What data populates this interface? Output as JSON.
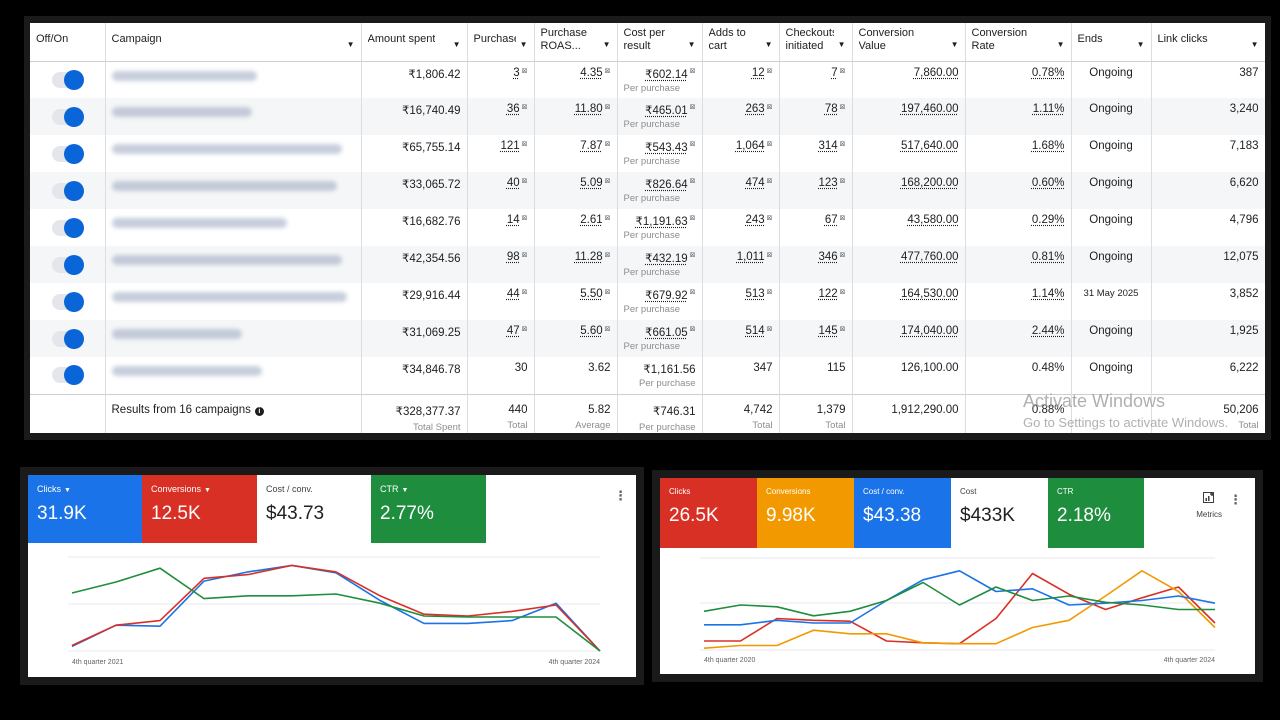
{
  "table": {
    "columns": [
      "Off/On",
      "Campaign",
      "Amount spent",
      "Purchases",
      "Purchase ROAS...",
      "Cost per result",
      "Adds to cart",
      "Checkouts initiated",
      "Conversion Value",
      "Conversion Rate",
      "Ends",
      "Link clicks"
    ],
    "rows": [
      {
        "amount": "₹1,806.42",
        "purchases": "3",
        "roas": "4.35",
        "cpr": "₹602.14",
        "cpr_sub": "Per purchase",
        "atc": "12",
        "checkout": "7",
        "value": "7,860.00",
        "rate": "0.78%",
        "ends": "Ongoing",
        "clicks": "387"
      },
      {
        "amount": "₹16,740.49",
        "purchases": "36",
        "roas": "11.80",
        "cpr": "₹465.01",
        "cpr_sub": "Per purchase",
        "atc": "263",
        "checkout": "78",
        "value": "197,460.00",
        "rate": "1.11%",
        "ends": "Ongoing",
        "clicks": "3,240"
      },
      {
        "amount": "₹65,755.14",
        "purchases": "121",
        "roas": "7.87",
        "cpr": "₹543.43",
        "cpr_sub": "Per purchase",
        "atc": "1,064",
        "checkout": "314",
        "value": "517,640.00",
        "rate": "1.68%",
        "ends": "Ongoing",
        "clicks": "7,183"
      },
      {
        "amount": "₹33,065.72",
        "purchases": "40",
        "roas": "5.09",
        "cpr": "₹826.64",
        "cpr_sub": "Per purchase",
        "atc": "474",
        "checkout": "123",
        "value": "168,200.00",
        "rate": "0.60%",
        "ends": "Ongoing",
        "clicks": "6,620"
      },
      {
        "amount": "₹16,682.76",
        "purchases": "14",
        "roas": "2.61",
        "cpr": "₹1,191.63",
        "cpr_sub": "Per purchase",
        "atc": "243",
        "checkout": "67",
        "value": "43,580.00",
        "rate": "0.29%",
        "ends": "Ongoing",
        "clicks": "4,796"
      },
      {
        "amount": "₹42,354.56",
        "purchases": "98",
        "roas": "11.28",
        "cpr": "₹432.19",
        "cpr_sub": "Per purchase",
        "atc": "1,011",
        "checkout": "346",
        "value": "477,760.00",
        "rate": "0.81%",
        "ends": "Ongoing",
        "clicks": "12,075"
      },
      {
        "amount": "₹29,916.44",
        "purchases": "44",
        "roas": "5.50",
        "cpr": "₹679.92",
        "cpr_sub": "Per purchase",
        "atc": "513",
        "checkout": "122",
        "value": "164,530.00",
        "rate": "1.14%",
        "ends": "31 May 2025",
        "clicks": "3,852"
      },
      {
        "amount": "₹31,069.25",
        "purchases": "47",
        "roas": "5.60",
        "cpr": "₹661.05",
        "cpr_sub": "Per purchase",
        "atc": "514",
        "checkout": "145",
        "value": "174,040.00",
        "rate": "2.44%",
        "ends": "Ongoing",
        "clicks": "1,925"
      },
      {
        "amount": "₹34,846.78",
        "purchases": "30",
        "roas": "3.62",
        "cpr": "₹1,161.56",
        "cpr_sub": "Per purchase",
        "atc": "347",
        "checkout": "115",
        "value": "126,100.00",
        "rate": "0.48%",
        "ends": "Ongoing",
        "clicks": "6,222"
      }
    ],
    "totals": {
      "label": "Results from 16 campaigns",
      "amount": "₹328,377.37",
      "amount_sub": "Total Spent",
      "purchases": "440",
      "purchases_sub": "Total",
      "roas": "5.82",
      "roas_sub": "Average",
      "cpr": "₹746.31",
      "cpr_sub": "Per purchase",
      "atc": "4,742",
      "atc_sub": "Total",
      "checkout": "1,379",
      "checkout_sub": "Total",
      "value": "1,912,290.00",
      "rate": "0.88%",
      "clicks": "50,206",
      "clicks_sub": "Total"
    }
  },
  "watermark": {
    "title": "Activate Windows",
    "subtitle": "Go to Settings to activate Windows."
  },
  "left_panel": {
    "tiles": [
      {
        "label": "Clicks",
        "value": "31.9K",
        "color": "#1a73e8"
      },
      {
        "label": "Conversions",
        "value": "12.5K",
        "color": "#d93025"
      },
      {
        "label": "Cost / conv.",
        "value": "$43.73",
        "color": "#ffffff"
      },
      {
        "label": "CTR",
        "value": "2.77%",
        "color": "#1e8e3e"
      }
    ],
    "x_start": "4th quarter 2021",
    "x_end": "4th quarter 2024"
  },
  "right_panel": {
    "tiles": [
      {
        "label": "Clicks",
        "value": "26.5K",
        "color": "#d93025"
      },
      {
        "label": "Conversions",
        "value": "9.98K",
        "color": "#f29900"
      },
      {
        "label": "Cost / conv.",
        "value": "$43.38",
        "color": "#1a73e8"
      },
      {
        "label": "Cost",
        "value": "$433K",
        "color": "#ffffff"
      },
      {
        "label": "CTR",
        "value": "2.18%",
        "color": "#1e8e3e"
      }
    ],
    "metrics_label": "Metrics",
    "x_start": "4th quarter 2020",
    "x_end": "4th quarter 2024"
  },
  "chart_data": [
    {
      "type": "line",
      "xlabel_ticks": [
        "4th quarter 2021",
        "4th quarter 2024"
      ],
      "ylim": [
        0,
        100
      ],
      "grid": true,
      "series": [
        {
          "name": "Clicks",
          "color": "#1a73e8",
          "values": [
            5,
            28,
            27,
            76,
            86,
            93,
            85,
            55,
            30,
            30,
            33,
            52,
            0
          ]
        },
        {
          "name": "Conversions",
          "color": "#d93025",
          "values": [
            6,
            28,
            33,
            79,
            83,
            93,
            86,
            60,
            40,
            38,
            43,
            50,
            0
          ]
        },
        {
          "name": "CTR",
          "color": "#1e8e3e",
          "values": [
            63,
            75,
            90,
            57,
            60,
            60,
            62,
            52,
            38,
            37,
            37,
            37,
            0
          ]
        }
      ]
    },
    {
      "type": "line",
      "xlabel_ticks": [
        "4th quarter 2020",
        "4th quarter 2024"
      ],
      "ylim": [
        0,
        100
      ],
      "grid": true,
      "series": [
        {
          "name": "Clicks",
          "color": "#d93025",
          "values": [
            10,
            10,
            35,
            33,
            32,
            10,
            8,
            7,
            35,
            85,
            62,
            45,
            58,
            70,
            30
          ]
        },
        {
          "name": "Conversions",
          "color": "#f29900",
          "values": [
            2,
            5,
            5,
            22,
            18,
            18,
            8,
            7,
            7,
            25,
            33,
            60,
            88,
            65,
            25
          ]
        },
        {
          "name": "Cost / conv.",
          "color": "#1a73e8",
          "values": [
            28,
            28,
            33,
            30,
            30,
            55,
            78,
            88,
            65,
            68,
            50,
            52,
            55,
            60,
            52
          ]
        },
        {
          "name": "CTR",
          "color": "#1e8e3e",
          "values": [
            43,
            50,
            48,
            38,
            43,
            55,
            75,
            50,
            70,
            55,
            60,
            53,
            50,
            45,
            45
          ]
        }
      ]
    }
  ]
}
